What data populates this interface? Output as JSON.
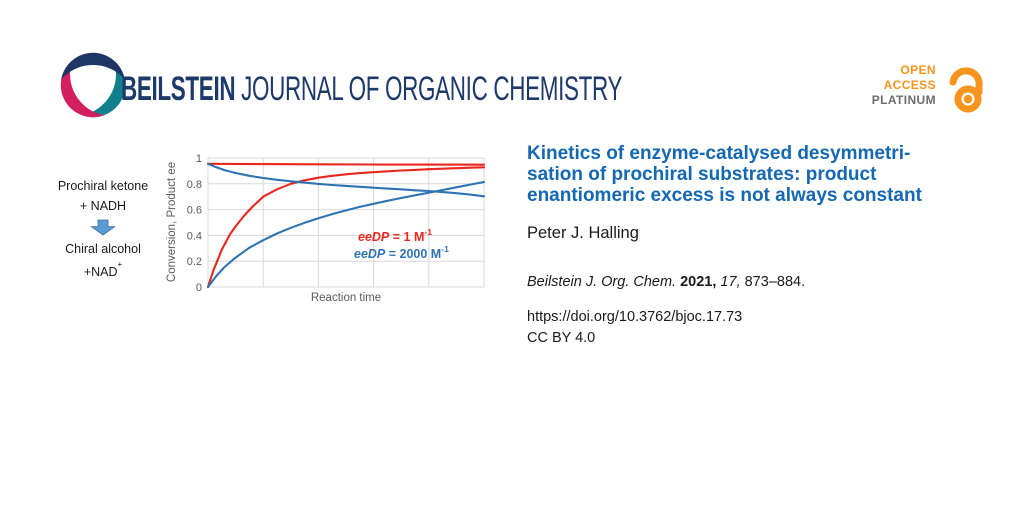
{
  "header": {
    "brand_bold": "BEILSTEIN",
    "brand_rest": " JOURNAL OF ORGANIC CHEMISTRY",
    "brand_color": "#1d3a6a",
    "logo_colors": {
      "navy": "#1e3566",
      "teal": "#12808a",
      "pink": "#d41f5f"
    },
    "open_access": {
      "line1": "OPEN",
      "line2": "ACCESS",
      "line3": "PLATINUM",
      "orange": "#f7941e",
      "gray": "#6b6c6f"
    }
  },
  "scheme": {
    "reactant_line1": "Prochiral ketone",
    "reactant_line2": "+ NADH",
    "product_line1": "Chiral alcohol",
    "product_line2": "+NAD",
    "product_line2_sup": "+",
    "arrow_fill": "#5b9bd5",
    "arrow_stroke": "#41719c"
  },
  "chart_data": {
    "type": "line",
    "xlabel": "Reaction time",
    "ylabel": "Conversion, Product ee",
    "xlim": [
      0,
      1
    ],
    "ylim": [
      0,
      1
    ],
    "grid": true,
    "grid_color": "#d9d9d9",
    "axis_text_color": "#595959",
    "ytick_values": [
      0,
      0.2,
      0.4,
      0.6,
      0.8,
      1
    ],
    "ytick_labels": [
      "0",
      "0.2",
      "0.4",
      "0.6",
      "0.8",
      "1"
    ],
    "x_gridlines": [
      0,
      0.2,
      0.4,
      0.6,
      0.8,
      1
    ],
    "legend_position": "inside-right",
    "legend": [
      {
        "italic": "eeDP",
        "text": " = 1 M",
        "sup": "-1",
        "color": "#e8281e"
      },
      {
        "italic": "eeDP",
        "text": " = 2000 M",
        "sup": "-1",
        "color": "#2e74b5"
      }
    ],
    "series": [
      {
        "name": "Conversion (eeDP = 1 M-1)",
        "color": "#e8281e",
        "points": [
          [
            0,
            0
          ],
          [
            0.02,
            0.13
          ],
          [
            0.05,
            0.29
          ],
          [
            0.08,
            0.41
          ],
          [
            0.1,
            0.47
          ],
          [
            0.13,
            0.55
          ],
          [
            0.16,
            0.62
          ],
          [
            0.2,
            0.7
          ],
          [
            0.25,
            0.757
          ],
          [
            0.3,
            0.8
          ],
          [
            0.35,
            0.827
          ],
          [
            0.4,
            0.847
          ],
          [
            0.45,
            0.862
          ],
          [
            0.5,
            0.874
          ],
          [
            0.55,
            0.883
          ],
          [
            0.6,
            0.89
          ],
          [
            0.65,
            0.897
          ],
          [
            0.7,
            0.903
          ],
          [
            0.75,
            0.908
          ],
          [
            0.8,
            0.913
          ],
          [
            0.85,
            0.917
          ],
          [
            0.9,
            0.921
          ],
          [
            0.95,
            0.925
          ],
          [
            1,
            0.928
          ]
        ]
      },
      {
        "name": "Product ee (eeDP = 1 M-1)",
        "color": "#e8281e",
        "points": [
          [
            0,
            0.955
          ],
          [
            0.2,
            0.953
          ],
          [
            0.4,
            0.951
          ],
          [
            0.6,
            0.95
          ],
          [
            0.8,
            0.949
          ],
          [
            1,
            0.948
          ]
        ]
      },
      {
        "name": "Conversion (eeDP = 2000 M-1)",
        "color": "#2e74b5",
        "points": [
          [
            0,
            0
          ],
          [
            0.03,
            0.085
          ],
          [
            0.06,
            0.155
          ],
          [
            0.1,
            0.228
          ],
          [
            0.15,
            0.305
          ],
          [
            0.2,
            0.363
          ],
          [
            0.25,
            0.415
          ],
          [
            0.3,
            0.459
          ],
          [
            0.35,
            0.498
          ],
          [
            0.4,
            0.533
          ],
          [
            0.45,
            0.565
          ],
          [
            0.5,
            0.594
          ],
          [
            0.55,
            0.621
          ],
          [
            0.6,
            0.645
          ],
          [
            0.65,
            0.668
          ],
          [
            0.7,
            0.69
          ],
          [
            0.75,
            0.711
          ],
          [
            0.8,
            0.731
          ],
          [
            0.85,
            0.752
          ],
          [
            0.9,
            0.773
          ],
          [
            0.95,
            0.794
          ],
          [
            1,
            0.814
          ]
        ]
      },
      {
        "name": "Product ee (eeDP = 2000 M-1)",
        "color": "#2e74b5",
        "points": [
          [
            0,
            0.955
          ],
          [
            0.03,
            0.928
          ],
          [
            0.06,
            0.906
          ],
          [
            0.1,
            0.884
          ],
          [
            0.15,
            0.862
          ],
          [
            0.2,
            0.845
          ],
          [
            0.25,
            0.831
          ],
          [
            0.3,
            0.819
          ],
          [
            0.35,
            0.809
          ],
          [
            0.4,
            0.799
          ],
          [
            0.45,
            0.791
          ],
          [
            0.5,
            0.784
          ],
          [
            0.55,
            0.777
          ],
          [
            0.6,
            0.77
          ],
          [
            0.65,
            0.763
          ],
          [
            0.7,
            0.757
          ],
          [
            0.75,
            0.75
          ],
          [
            0.8,
            0.744
          ],
          [
            0.85,
            0.736
          ],
          [
            0.9,
            0.727
          ],
          [
            0.95,
            0.716
          ],
          [
            1,
            0.703
          ]
        ]
      }
    ]
  },
  "article": {
    "title_color": "#1467b3",
    "title_line1": "Kinetics of enzyme-catalysed desymmetri-",
    "title_line2": "sation of prochiral substrates: product",
    "title_line3": "enantiomeric excess is not always constant",
    "author": "Peter J. Halling",
    "citation": {
      "journal": "Beilstein J. Org. Chem.",
      "year": " 2021,",
      "volume": " 17,",
      "pages": " 873–884."
    },
    "doi": "https://doi.org/10.3762/bjoc.17.73",
    "license": "CC BY 4.0"
  }
}
